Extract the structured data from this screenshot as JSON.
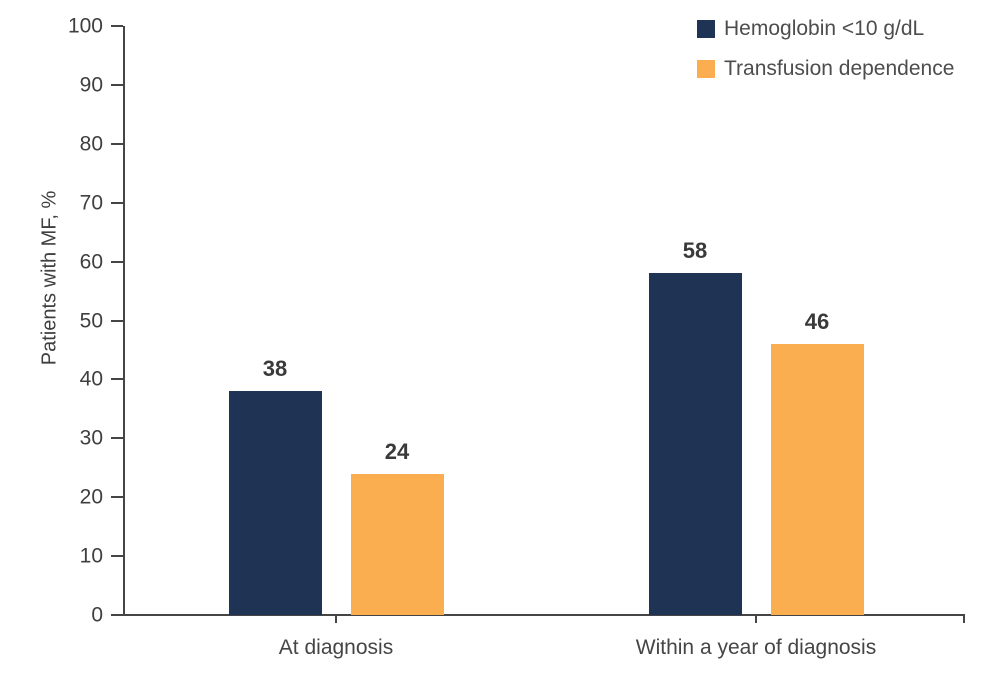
{
  "chart_data": {
    "type": "bar",
    "title": "",
    "xlabel": "",
    "ylabel": "Patients with MF, %",
    "categories": [
      "At diagnosis",
      "Within a year of diagnosis"
    ],
    "series": [
      {
        "name": "Hemoglobin <10 g/dL",
        "color": "#1F3454",
        "values": [
          38,
          58
        ]
      },
      {
        "name": "Transfusion dependence",
        "color": "#FBAE4F",
        "values": [
          24,
          46
        ]
      }
    ],
    "ylim": [
      0,
      100
    ],
    "yticks": [
      0,
      10,
      20,
      30,
      40,
      50,
      60,
      70,
      80,
      90,
      100
    ],
    "grid": false,
    "legend_position": "top-right",
    "value_labels_shown": true
  },
  "colors": {
    "background": "#ffffff",
    "axis": "#454545",
    "tick_label": "#3f3f3f",
    "value_label": "#3a3a3a",
    "legend_text": "#4d4d4d"
  }
}
